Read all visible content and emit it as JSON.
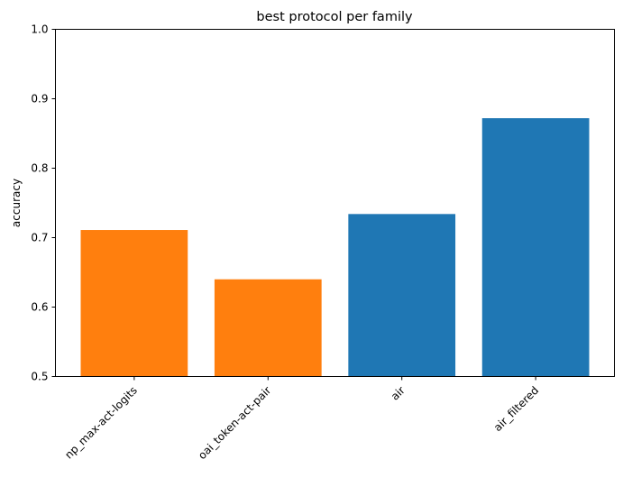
{
  "chart_data": {
    "type": "bar",
    "title": "best protocol per family",
    "xlabel": "",
    "ylabel": "accuracy",
    "ylim": [
      0.5,
      1.0
    ],
    "yticks": [
      "0.5",
      "0.6",
      "0.7",
      "0.8",
      "0.9",
      "1.0"
    ],
    "grid": false,
    "categories": [
      "np_max-act-logits",
      "oai_token-act-pair",
      "air",
      "air_filtered"
    ],
    "values": [
      0.711,
      0.64,
      0.734,
      0.872
    ],
    "colors": [
      "#ff7f0e",
      "#ff7f0e",
      "#1f77b4",
      "#1f77b4"
    ]
  }
}
